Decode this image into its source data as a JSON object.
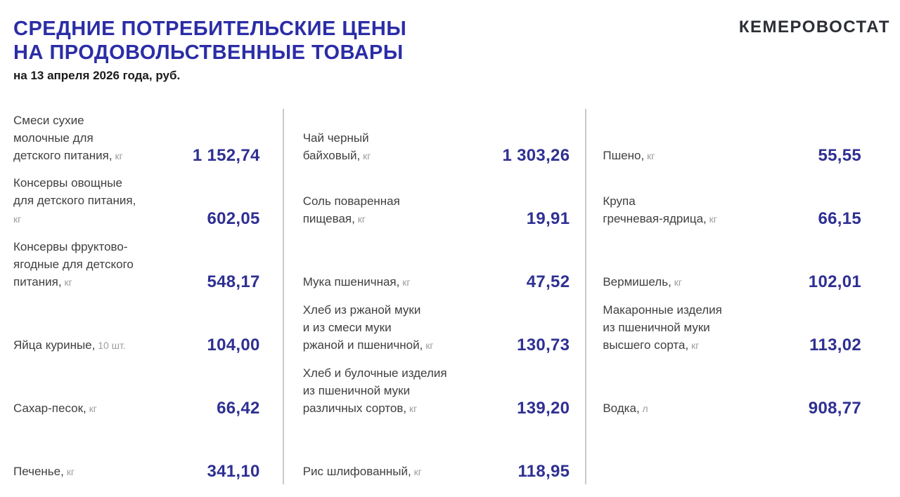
{
  "header": {
    "title_line1": "СРЕДНИЕ ПОТРЕБИТЕЛЬСКИЕ ЦЕНЫ",
    "title_line2": "НА ПРОДОВОЛЬСТВЕННЫЕ ТОВАРЫ",
    "subtitle": "на 13 апреля 2026 года, руб.",
    "brand": "КЕМЕРОВОСТАТ"
  },
  "colors": {
    "title_blue": "#2b2da6",
    "value_blue": "#2f3092",
    "brand_dark": "#2c2f36",
    "label_dark": "#3f3f3f",
    "unit_gray": "#9e9e9e",
    "divider_gray": "#c9c9c9"
  },
  "chart_data": {
    "type": "table",
    "title": "СРЕДНИЕ ПОТРЕБИТЕЛЬСКИЕ ЦЕНЫ НА ПРОДОВОЛЬСТВЕННЫЕ ТОВАРЫ",
    "subtitle": "на 13 апреля 2026 года, руб.",
    "columns": [
      {
        "items": [
          {
            "name": "Смеси сухие\nмолочные для\nдетского питания,",
            "unit": " кг",
            "display": "1 152,74",
            "value": 1152.74
          },
          {
            "name": "Консервы овощные\nдля детского питания,",
            "unit": "\nкг",
            "display": "602,05",
            "value": 602.05
          },
          {
            "name": "Консервы фруктово-\nягодные для детского\nпитания,",
            "unit": " кг",
            "display": "548,17",
            "value": 548.17
          },
          {
            "name": "Яйца куриные,",
            "unit": " 10 шт.",
            "display": "104,00",
            "value": 104.0
          },
          {
            "name": "Сахар-песок,",
            "unit": " кг",
            "display": "66,42",
            "value": 66.42
          },
          {
            "name": "Печенье,",
            "unit": " кг",
            "display": "341,10",
            "value": 341.1
          }
        ]
      },
      {
        "items": [
          {
            "name": "Чай черный\nбайховый,",
            "unit": " кг",
            "display": "1 303,26",
            "value": 1303.26
          },
          {
            "name": "Соль поваренная\nпищевая,",
            "unit": " кг",
            "display": "19,91",
            "value": 19.91
          },
          {
            "name": "Мука пшеничная,",
            "unit": " кг",
            "display": "47,52",
            "value": 47.52
          },
          {
            "name": "Хлеб из ржаной муки\nи из смеси муки\nржаной и пшеничной,",
            "unit": " кг",
            "display": "130,73",
            "value": 130.73
          },
          {
            "name": "Хлеб и булочные изделия\nиз пшеничной муки\nразличных сортов,",
            "unit": " кг",
            "display": "139,20",
            "value": 139.2
          },
          {
            "name": "Рис шлифованный,",
            "unit": " кг",
            "display": "118,95",
            "value": 118.95
          }
        ]
      },
      {
        "items": [
          {
            "name": "Пшено,",
            "unit": " кг",
            "display": "55,55",
            "value": 55.55
          },
          {
            "name": "Крупа\nгречневая-ядрица,",
            "unit": " кг",
            "display": "66,15",
            "value": 66.15
          },
          {
            "name": "Вермишель,",
            "unit": " кг",
            "display": "102,01",
            "value": 102.01
          },
          {
            "name": "Макаронные изделия\nиз пшеничной муки\nвысшего сорта,",
            "unit": " кг",
            "display": "113,02",
            "value": 113.02
          },
          {
            "name": "Водка,",
            "unit": " л",
            "display": "908,77",
            "value": 908.77
          }
        ]
      }
    ]
  }
}
